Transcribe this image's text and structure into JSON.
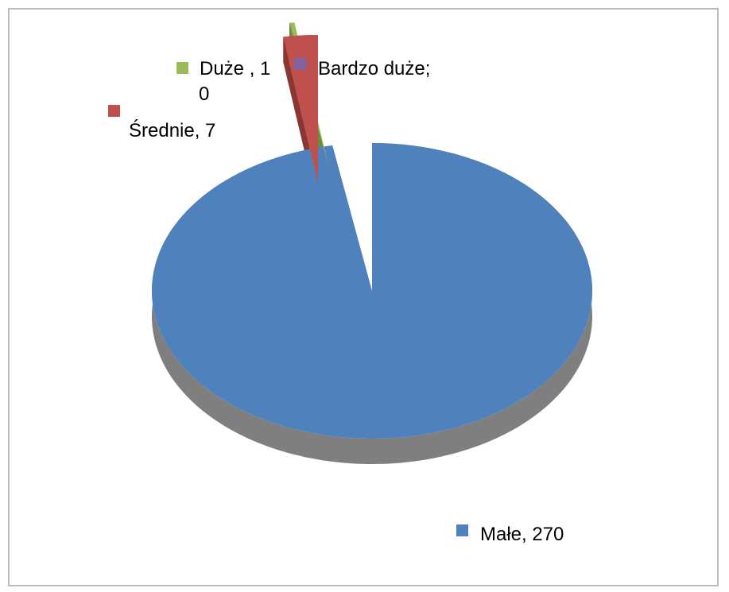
{
  "chart_data": {
    "type": "pie",
    "style": "3d-exploded",
    "title": "",
    "slices": [
      {
        "label": "Małe",
        "value": 270,
        "color": "#4f81bd",
        "side_color": "#7f7f7f",
        "display": [
          "Małe, 270"
        ]
      },
      {
        "label": "Bardzo duże",
        "value": 0,
        "color": "#8064a2",
        "side_color": "#5a4472",
        "display": [
          "Bardzo  duże;",
          "0"
        ]
      },
      {
        "label": "Duże",
        "value": 1,
        "color": "#9bbb59",
        "side_color": "#6d8a3a",
        "display": [
          "Duże  ,  1"
        ]
      },
      {
        "label": "Średnie",
        "value": 7,
        "color": "#c0504d",
        "side_color": "#8c3634",
        "display": [
          "Średnie, 7"
        ]
      }
    ],
    "legend": "data-labels-with-markers"
  }
}
